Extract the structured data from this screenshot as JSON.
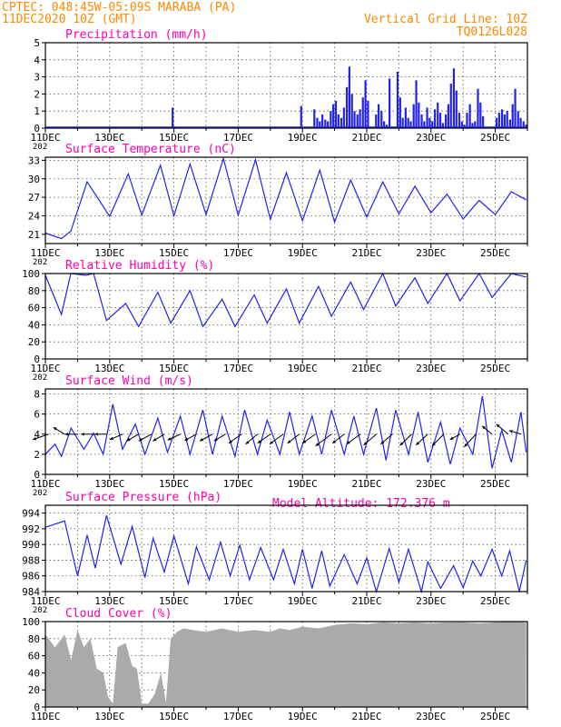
{
  "header": {
    "station": "CPTEC:  048:45W-05:09S  MARABA (PA)",
    "run": "11DEC2020 10Z (GMT)",
    "grid_note": "Vertical Grid Line: 10Z",
    "model_code": "TQ0126L028",
    "model_altitude": "Model Altitude: 172.376 m"
  },
  "colors": {
    "title": "#ff00aa",
    "header": "#ff8800",
    "line": "#2222ee",
    "bar": "#2222ee",
    "cloud": "#aaaaaa"
  },
  "x_tick_labels": [
    "11DEC",
    "13DEC",
    "15DEC",
    "17DEC",
    "19DEC",
    "21DEC",
    "23DEC",
    "25DEC"
  ],
  "x_tick_days": [
    0,
    2,
    4,
    6,
    8,
    10,
    12,
    14
  ],
  "year_stub": "202",
  "chart_data": [
    {
      "type": "bar",
      "title": "Precipitation (mm/h)",
      "ylim": [
        0,
        5
      ],
      "yticks": [
        "0",
        "1",
        "2",
        "3",
        "4",
        "5"
      ],
      "grid": true,
      "x_unit": "days since 11DEC2020 10Z",
      "x": [
        3.96,
        7.96,
        8.37,
        8.46,
        8.54,
        8.62,
        8.71,
        8.79,
        8.88,
        8.96,
        9.04,
        9.12,
        9.21,
        9.29,
        9.38,
        9.46,
        9.54,
        9.62,
        9.71,
        9.79,
        9.88,
        9.96,
        10.04,
        10.29,
        10.37,
        10.46,
        10.54,
        10.62,
        10.71,
        10.96,
        11.04,
        11.12,
        11.21,
        11.29,
        11.37,
        11.46,
        11.54,
        11.62,
        11.71,
        11.79,
        11.88,
        11.96,
        12.04,
        12.12,
        12.21,
        12.29,
        12.37,
        12.46,
        12.54,
        12.62,
        12.71,
        12.79,
        12.88,
        12.96,
        13.04,
        13.12,
        13.21,
        13.29,
        13.37,
        13.46,
        13.54,
        13.62,
        14.04,
        14.12,
        14.21,
        14.29,
        14.37,
        14.46,
        14.54,
        14.62,
        14.71,
        14.79,
        14.88,
        14.96
      ],
      "values": [
        1.2,
        1.3,
        1.1,
        0.6,
        0.4,
        0.8,
        0.5,
        0.4,
        1.0,
        1.4,
        1.6,
        0.8,
        0.6,
        1.2,
        2.4,
        3.6,
        2.0,
        1.0,
        0.8,
        1.1,
        1.8,
        2.8,
        1.6,
        0.8,
        1.4,
        1.0,
        0.4,
        0.2,
        2.9,
        3.3,
        1.8,
        0.6,
        1.2,
        0.6,
        0.4,
        1.4,
        2.8,
        1.5,
        0.8,
        0.4,
        1.2,
        0.6,
        0.4,
        1.1,
        1.5,
        0.9,
        0.3,
        0.8,
        1.4,
        2.6,
        3.5,
        2.2,
        0.9,
        0.4,
        0.2,
        0.9,
        1.4,
        0.3,
        0.4,
        2.3,
        1.5,
        0.7,
        0.6,
        0.9,
        1.1,
        0.8,
        1.0,
        0.5,
        1.4,
        2.3,
        1.0,
        0.6,
        0.4,
        0.2
      ]
    },
    {
      "type": "line",
      "title": "Surface Temperature (nC)",
      "ylim": [
        19.5,
        33.5
      ],
      "yticks": [
        "21",
        "24",
        "27",
        "30",
        "33"
      ],
      "ytick_values": [
        21,
        24,
        27,
        30,
        33
      ],
      "grid": true,
      "series": [
        {
          "x": [
            0,
            0.5,
            0.79,
            1.3,
            2.0,
            2.58,
            3.0,
            3.58,
            4.0,
            4.5,
            5.0,
            5.54,
            6.0,
            6.54,
            7.0,
            7.5,
            8.0,
            8.54,
            9.0,
            9.5,
            10.0,
            10.5,
            11.0,
            11.5,
            12.0,
            12.5,
            13.0,
            13.5,
            14.0,
            14.5,
            14.96
          ],
          "y": [
            21.2,
            20.3,
            21.5,
            29.5,
            23.9,
            30.8,
            24.1,
            32.2,
            24.0,
            32.4,
            24.2,
            33.3,
            24.1,
            33.1,
            23.4,
            31.0,
            23.2,
            31.4,
            23.0,
            29.8,
            23.8,
            29.5,
            24.3,
            28.8,
            24.5,
            27.5,
            23.5,
            26.5,
            24.2,
            27.9,
            26.6
          ]
        }
      ]
    },
    {
      "type": "line",
      "title": "Relative Humidity (%)",
      "ylim": [
        0,
        100
      ],
      "yticks": [
        "0",
        "20",
        "40",
        "60",
        "80",
        "100"
      ],
      "grid": true,
      "series": [
        {
          "x": [
            0,
            0.5,
            0.79,
            1.25,
            1.5,
            1.9,
            2.5,
            2.9,
            3.5,
            3.9,
            4.5,
            4.9,
            5.5,
            5.9,
            6.5,
            6.9,
            7.5,
            7.9,
            8.5,
            8.9,
            9.5,
            9.9,
            10.5,
            10.9,
            11.5,
            11.9,
            12.5,
            12.9,
            13.5,
            13.9,
            14.5,
            14.96
          ],
          "y": [
            98,
            52,
            100,
            98,
            100,
            45,
            65,
            38,
            78,
            42,
            80,
            38,
            70,
            38,
            75,
            42,
            82,
            42,
            85,
            50,
            90,
            58,
            100,
            62,
            95,
            65,
            100,
            68,
            100,
            72,
            100,
            96
          ]
        }
      ]
    },
    {
      "type": "line",
      "title": "Surface Wind (m/s)",
      "ylim": [
        0,
        8.5
      ],
      "yticks": [
        "0",
        "2",
        "4",
        "6",
        "8"
      ],
      "grid": true,
      "series": [
        {
          "x": [
            0,
            0.3,
            0.5,
            0.8,
            1.2,
            1.5,
            1.8,
            2.1,
            2.4,
            2.8,
            3.1,
            3.5,
            3.8,
            4.2,
            4.5,
            4.9,
            5.2,
            5.5,
            5.9,
            6.2,
            6.6,
            6.9,
            7.3,
            7.6,
            7.9,
            8.3,
            8.6,
            8.9,
            9.3,
            9.6,
            9.9,
            10.3,
            10.6,
            10.9,
            11.3,
            11.6,
            11.9,
            12.3,
            12.6,
            12.9,
            13.3,
            13.6,
            13.9,
            14.2,
            14.5,
            14.8,
            14.96
          ],
          "y": [
            2.0,
            3.0,
            1.8,
            4.6,
            2.5,
            4.1,
            2.0,
            7.0,
            2.5,
            5.0,
            2.0,
            5.6,
            2.2,
            5.8,
            2.0,
            6.4,
            2.0,
            5.8,
            1.8,
            6.4,
            2.0,
            5.4,
            2.0,
            6.2,
            2.0,
            5.8,
            2.0,
            6.4,
            2.0,
            5.8,
            2.0,
            6.6,
            1.4,
            6.4,
            2.0,
            6.2,
            1.2,
            5.2,
            1.0,
            4.6,
            2.0,
            7.8,
            0.6,
            4.4,
            1.2,
            6.2,
            2.2
          ]
        }
      ],
      "vectors": {
        "x": [
          0.1,
          0.6,
          1.0,
          1.5,
          1.9,
          2.4,
          2.9,
          3.3,
          3.7,
          4.2,
          4.7,
          5.2,
          5.6,
          6.1,
          6.6,
          7.0,
          7.4,
          7.9,
          8.4,
          8.9,
          9.3,
          9.8,
          10.3,
          10.8,
          11.4,
          11.9,
          12.4,
          12.9,
          13.4,
          13.9,
          14.4,
          14.8
        ],
        "u": [
          -3.5,
          -2.5,
          -2.8,
          -2.8,
          -2.6,
          -2.8,
          -2.6,
          -2.8,
          -2.5,
          -2.8,
          -2.6,
          -2.8,
          -2.5,
          -2.8,
          -2.6,
          -2.8,
          -3.0,
          -2.6,
          -2.8,
          -3.5,
          -2.6,
          -3.0,
          -2.8,
          -2.6,
          -2.6,
          -2.6,
          -2.6,
          -2.2,
          -2.6,
          -2.2,
          -2.6,
          -2.6
        ],
        "v": [
          -1.2,
          1.5,
          0.0,
          0.0,
          0.0,
          -1.2,
          -1.5,
          -1.5,
          -1.5,
          -1.3,
          -1.4,
          -1.5,
          -1.5,
          -2.0,
          -2.2,
          -2.0,
          -2.2,
          -2.0,
          -2.0,
          -2.6,
          -2.0,
          -2.2,
          -2.4,
          -2.2,
          -2.5,
          -2.4,
          -2.6,
          -1.2,
          -2.8,
          1.8,
          2.2,
          0.8
        ]
      }
    },
    {
      "type": "line",
      "title": "Surface Pressure (hPa)",
      "ylim": [
        984,
        995
      ],
      "yticks": [
        "984",
        "986",
        "988",
        "990",
        "992",
        "994"
      ],
      "ytick_values": [
        984,
        986,
        988,
        990,
        992,
        994
      ],
      "grid": true,
      "series": [
        {
          "x": [
            0,
            0.6,
            1.0,
            1.3,
            1.55,
            1.9,
            2.35,
            2.7,
            3.1,
            3.35,
            3.7,
            4.0,
            4.45,
            4.7,
            5.1,
            5.45,
            5.75,
            6.05,
            6.35,
            6.7,
            7.1,
            7.4,
            7.75,
            8.0,
            8.3,
            8.6,
            8.85,
            9.3,
            9.7,
            10.0,
            10.3,
            10.7,
            11.0,
            11.3,
            11.7,
            11.9,
            12.3,
            12.7,
            13.0,
            13.3,
            13.55,
            13.9,
            14.2,
            14.45,
            14.75,
            14.96
          ],
          "y": [
            992.2,
            993.0,
            986.0,
            991.2,
            987.0,
            993.7,
            987.5,
            992.3,
            985.8,
            990.8,
            986.5,
            991.1,
            985.0,
            989.7,
            985.5,
            990.3,
            986.0,
            989.9,
            985.5,
            989.6,
            985.5,
            989.4,
            985.0,
            989.4,
            984.4,
            989.2,
            984.7,
            988.7,
            985.0,
            988.3,
            984.0,
            989.5,
            985.2,
            989.4,
            984.0,
            987.8,
            984.4,
            987.3,
            984.5,
            987.9,
            986.0,
            989.4,
            986.0,
            989.2,
            984.0,
            988.0
          ]
        }
      ]
    },
    {
      "type": "area",
      "title": "Cloud Cover (%)",
      "ylim": [
        0,
        100
      ],
      "yticks": [
        "0",
        "20",
        "40",
        "60",
        "80",
        "100"
      ],
      "grid": true,
      "series": [
        {
          "x": [
            0,
            0.3,
            0.6,
            0.8,
            1.0,
            1.2,
            1.4,
            1.6,
            1.8,
            1.95,
            2.1,
            2.25,
            2.5,
            2.7,
            2.85,
            3.0,
            3.2,
            3.4,
            3.6,
            3.75,
            3.9,
            4.1,
            4.3,
            4.6,
            5.0,
            5.5,
            6.0,
            6.5,
            7.0,
            7.3,
            7.6,
            8.0,
            8.5,
            9.0,
            9.5,
            10.0,
            10.5,
            11.0,
            11.5,
            12.0,
            12.5,
            13.0,
            13.5,
            14.0,
            14.5,
            14.96
          ],
          "y": [
            85,
            70,
            85,
            55,
            90,
            70,
            80,
            45,
            40,
            12,
            4,
            70,
            75,
            48,
            45,
            4,
            4,
            15,
            40,
            5,
            80,
            88,
            92,
            90,
            88,
            92,
            88,
            90,
            88,
            92,
            90,
            94,
            92,
            96,
            98,
            97,
            99,
            98,
            99,
            98,
            99,
            99,
            98,
            99,
            100,
            99
          ]
        }
      ]
    }
  ]
}
